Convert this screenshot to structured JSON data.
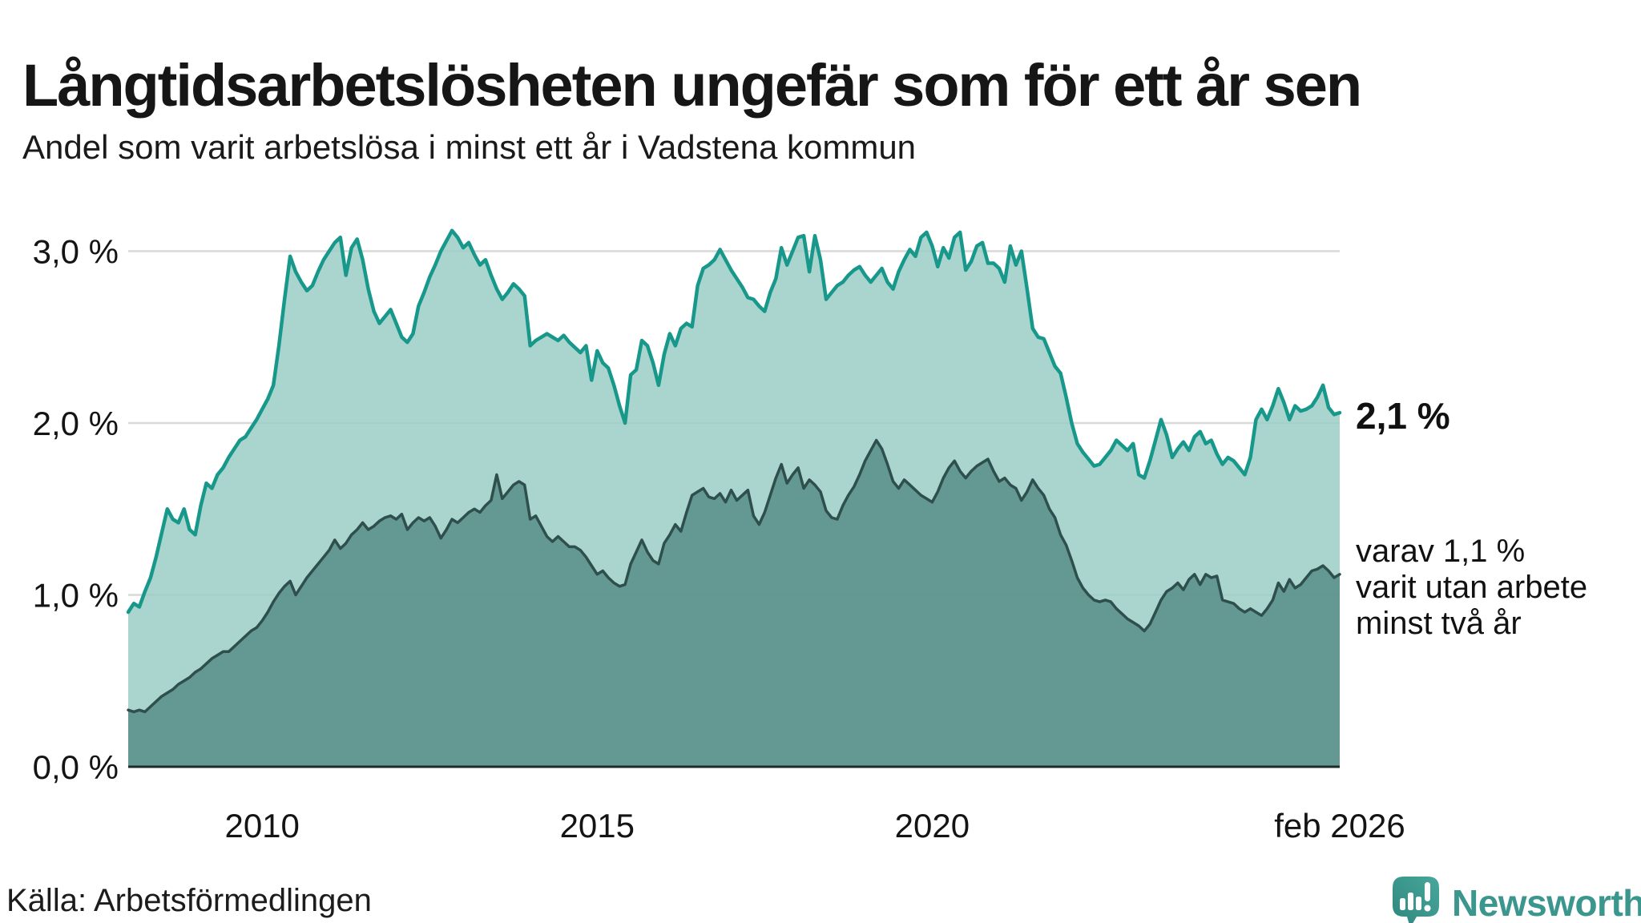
{
  "title": "Långtidsarbetslösheten ungefär som för ett år sen",
  "subtitle": "Andel som varit arbetslösa i minst ett år i Vadstena kommun",
  "source": "Källa: Arbetsförmedlingen",
  "logo": {
    "text": "Newsworthy",
    "color": "#3b968d"
  },
  "annotations": {
    "latest_value": "2,1 %",
    "secondary": [
      "varav 1,1 %",
      "varit utan arbete",
      "minst två år"
    ]
  },
  "chart_data": {
    "type": "area",
    "title": "Långtidsarbetslösheten ungefär som för ett år sen",
    "subtitle": "Andel som varit arbetslösa i minst ett år i Vadstena kommun",
    "x_start": 2008.0,
    "x_end": 2026.0833,
    "x_step_months": 1,
    "grid": true,
    "grid_color": "#d9d9d9",
    "axis_color": "#1e2b29",
    "ylim": [
      0,
      3.3
    ],
    "y_ticks": [
      {
        "value": 0,
        "label": "0,0 %"
      },
      {
        "value": 1,
        "label": "1,0 %"
      },
      {
        "value": 2,
        "label": "2,0 %"
      },
      {
        "value": 3,
        "label": "3,0 %"
      }
    ],
    "x_ticks": [
      {
        "value": 2010,
        "label": "2010"
      },
      {
        "value": 2015,
        "label": "2015"
      },
      {
        "value": 2020,
        "label": "2020"
      },
      {
        "value": 2026.0833,
        "label": "feb 2026"
      }
    ],
    "series": [
      {
        "name": "Andel arbetslösa minst ett år",
        "color": "#17988b",
        "fill": "#9bcec5",
        "latest_label": "2,1 %",
        "values": [
          0.9,
          0.95,
          0.93,
          1.02,
          1.1,
          1.22,
          1.36,
          1.5,
          1.44,
          1.42,
          1.5,
          1.38,
          1.35,
          1.52,
          1.65,
          1.62,
          1.7,
          1.74,
          1.8,
          1.85,
          1.9,
          1.92,
          1.97,
          2.02,
          2.08,
          2.14,
          2.22,
          2.45,
          2.72,
          2.97,
          2.88,
          2.82,
          2.77,
          2.8,
          2.88,
          2.95,
          3.0,
          3.05,
          3.08,
          2.86,
          3.02,
          3.07,
          2.95,
          2.78,
          2.65,
          2.58,
          2.62,
          2.66,
          2.58,
          2.5,
          2.47,
          2.52,
          2.68,
          2.76,
          2.85,
          2.92,
          3.0,
          3.06,
          3.12,
          3.08,
          3.02,
          3.05,
          2.98,
          2.92,
          2.95,
          2.86,
          2.78,
          2.72,
          2.76,
          2.81,
          2.78,
          2.74,
          2.45,
          2.48,
          2.5,
          2.52,
          2.5,
          2.48,
          2.51,
          2.47,
          2.44,
          2.41,
          2.45,
          2.25,
          2.42,
          2.35,
          2.32,
          2.22,
          2.1,
          2.0,
          2.28,
          2.31,
          2.48,
          2.45,
          2.35,
          2.22,
          2.4,
          2.52,
          2.45,
          2.55,
          2.58,
          2.56,
          2.8,
          2.9,
          2.92,
          2.95,
          3.01,
          2.95,
          2.89,
          2.84,
          2.79,
          2.73,
          2.72,
          2.68,
          2.65,
          2.76,
          2.84,
          3.02,
          2.92,
          3.0,
          3.08,
          3.09,
          2.88,
          3.09,
          2.95,
          2.72,
          2.76,
          2.8,
          2.82,
          2.86,
          2.89,
          2.91,
          2.86,
          2.82,
          2.86,
          2.9,
          2.82,
          2.78,
          2.88,
          2.95,
          3.01,
          2.97,
          3.08,
          3.11,
          3.03,
          2.91,
          3.02,
          2.96,
          3.08,
          3.11,
          2.89,
          2.94,
          3.03,
          3.05,
          2.93,
          2.93,
          2.9,
          2.82,
          3.03,
          2.92,
          3.0,
          2.78,
          2.55,
          2.5,
          2.49,
          2.41,
          2.33,
          2.29,
          2.15,
          2.0,
          1.88,
          1.83,
          1.79,
          1.75,
          1.76,
          1.8,
          1.84,
          1.9,
          1.87,
          1.84,
          1.88,
          1.7,
          1.68,
          1.78,
          1.9,
          2.02,
          1.93,
          1.8,
          1.85,
          1.89,
          1.84,
          1.92,
          1.95,
          1.88,
          1.9,
          1.82,
          1.76,
          1.8,
          1.78,
          1.74,
          1.7,
          1.8,
          2.02,
          2.08,
          2.02,
          2.1,
          2.2,
          2.12,
          2.02,
          2.1,
          2.07,
          2.08,
          2.1,
          2.15,
          2.22,
          2.09,
          2.05,
          2.06
        ]
      },
      {
        "name": "Andel utan arbete minst två år",
        "color": "#2e4f4b",
        "fill": "#578d88",
        "latest_label": "1,1 %",
        "values": [
          0.33,
          0.32,
          0.33,
          0.32,
          0.35,
          0.38,
          0.41,
          0.43,
          0.45,
          0.48,
          0.5,
          0.52,
          0.55,
          0.57,
          0.6,
          0.63,
          0.65,
          0.67,
          0.67,
          0.7,
          0.73,
          0.76,
          0.79,
          0.81,
          0.85,
          0.9,
          0.96,
          1.01,
          1.05,
          1.08,
          1.0,
          1.05,
          1.1,
          1.14,
          1.18,
          1.22,
          1.26,
          1.32,
          1.27,
          1.3,
          1.35,
          1.38,
          1.42,
          1.38,
          1.4,
          1.43,
          1.45,
          1.46,
          1.44,
          1.47,
          1.38,
          1.42,
          1.45,
          1.43,
          1.45,
          1.4,
          1.33,
          1.38,
          1.44,
          1.42,
          1.45,
          1.48,
          1.5,
          1.48,
          1.52,
          1.55,
          1.7,
          1.56,
          1.6,
          1.64,
          1.66,
          1.64,
          1.44,
          1.46,
          1.4,
          1.34,
          1.31,
          1.34,
          1.31,
          1.28,
          1.28,
          1.26,
          1.22,
          1.17,
          1.12,
          1.14,
          1.1,
          1.07,
          1.05,
          1.06,
          1.18,
          1.25,
          1.32,
          1.25,
          1.2,
          1.18,
          1.3,
          1.35,
          1.41,
          1.37,
          1.48,
          1.58,
          1.6,
          1.62,
          1.57,
          1.56,
          1.59,
          1.54,
          1.61,
          1.55,
          1.58,
          1.61,
          1.46,
          1.41,
          1.48,
          1.58,
          1.68,
          1.76,
          1.65,
          1.7,
          1.74,
          1.62,
          1.67,
          1.64,
          1.6,
          1.49,
          1.45,
          1.44,
          1.52,
          1.58,
          1.63,
          1.7,
          1.78,
          1.84,
          1.9,
          1.85,
          1.76,
          1.66,
          1.62,
          1.67,
          1.64,
          1.61,
          1.58,
          1.56,
          1.54,
          1.6,
          1.68,
          1.74,
          1.78,
          1.72,
          1.68,
          1.72,
          1.75,
          1.77,
          1.79,
          1.72,
          1.66,
          1.68,
          1.64,
          1.62,
          1.55,
          1.6,
          1.67,
          1.62,
          1.58,
          1.5,
          1.45,
          1.35,
          1.29,
          1.2,
          1.1,
          1.04,
          1.0,
          0.97,
          0.96,
          0.97,
          0.96,
          0.92,
          0.89,
          0.86,
          0.84,
          0.82,
          0.79,
          0.83,
          0.9,
          0.97,
          1.02,
          1.04,
          1.07,
          1.03,
          1.09,
          1.12,
          1.06,
          1.12,
          1.1,
          1.11,
          0.97,
          0.96,
          0.95,
          0.92,
          0.9,
          0.92,
          0.9,
          0.88,
          0.92,
          0.97,
          1.07,
          1.02,
          1.09,
          1.04,
          1.06,
          1.1,
          1.14,
          1.15,
          1.17,
          1.14,
          1.1,
          1.12
        ]
      }
    ]
  }
}
